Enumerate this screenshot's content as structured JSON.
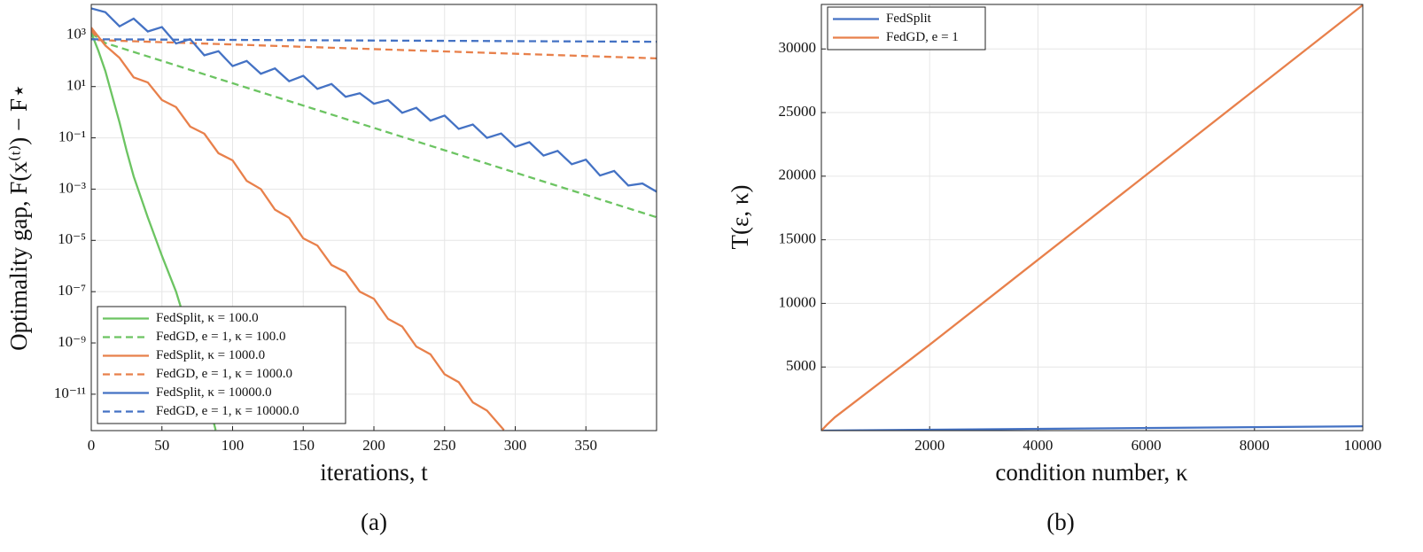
{
  "chart_data": [
    {
      "type": "line",
      "log_y": true,
      "grid": true,
      "legend": "lower left",
      "caption": "(a)",
      "xlabel": "iterations, t",
      "ylabel": "Optimality gap, F(x⁽ᵗ⁾) − F⋆",
      "xlim": [
        0,
        400
      ],
      "xticks": [
        0,
        50,
        100,
        150,
        200,
        250,
        300,
        350
      ],
      "ylim": [
        3.8e-13,
        16000
      ],
      "yticks": [
        {
          "value": 1000,
          "label": "10³"
        },
        {
          "value": 10,
          "label": "10¹"
        },
        {
          "value": 0.1,
          "label": "10⁻¹"
        },
        {
          "value": 0.001,
          "label": "10⁻³"
        },
        {
          "value": 1e-05,
          "label": "10⁻⁵"
        },
        {
          "value": 1e-07,
          "label": "10⁻⁷"
        },
        {
          "value": 1e-09,
          "label": "10⁻⁹"
        },
        {
          "value": 1e-11,
          "label": "10⁻¹¹"
        }
      ],
      "series": [
        {
          "name": "FedSplit, κ = 100.0",
          "color": "#6cc462",
          "linestyle": "solid",
          "x": [
            0,
            5,
            10,
            15,
            20,
            25,
            30,
            40,
            50,
            60,
            70,
            80,
            88
          ],
          "values": [
            1259,
            251,
            39.8,
            3.98,
            0.398,
            0.0316,
            0.00316,
            7.9e-05,
            2.5e-06,
            1e-07,
            1.6e-09,
            2.5e-11,
            4e-13
          ]
        },
        {
          "name": "FedGD, e = 1, κ = 100.0",
          "color": "#6cc462",
          "linestyle": "dashed",
          "x": [
            0,
            10,
            400
          ],
          "values": [
            1200,
            500,
            8e-05
          ]
        },
        {
          "name": "FedSplit, κ = 1000.0",
          "color": "#e8804b",
          "linestyle": "solid",
          "x": [
            0,
            10,
            20,
            30,
            40,
            50,
            60,
            70,
            80,
            90,
            100,
            110,
            120,
            130,
            140,
            150,
            160,
            170,
            180,
            190,
            200,
            210,
            220,
            230,
            240,
            250,
            260,
            270,
            280,
            292
          ],
          "values": [
            1995,
            398,
            132,
            22.9,
            14.5,
            3.0,
            1.58,
            0.275,
            0.145,
            0.0251,
            0.0132,
            0.00209,
            0.001,
            0.000158,
            7.6e-05,
            1.2e-05,
            6.3e-06,
            1.1e-06,
            5.75e-07,
            1e-07,
            5.25e-08,
            8.7e-09,
            4.37e-09,
            7.2e-10,
            3.6e-10,
            6e-11,
            2.95e-11,
            4.8e-12,
            2.3e-12,
            4e-13
          ]
        },
        {
          "name": "FedGD, e = 1, κ = 1000.0",
          "color": "#e8804b",
          "linestyle": "dashed",
          "x": [
            0,
            5,
            400
          ],
          "values": [
            1600,
            650,
            126
          ]
        },
        {
          "name": "FedSplit, κ = 10000.0",
          "color": "#4472c4",
          "linestyle": "solid",
          "x": [
            0,
            10,
            20,
            30,
            40,
            50,
            60,
            70,
            80,
            90,
            100,
            110,
            120,
            130,
            140,
            150,
            160,
            170,
            180,
            190,
            200,
            210,
            220,
            230,
            240,
            250,
            260,
            270,
            280,
            290,
            300,
            310,
            320,
            330,
            340,
            350,
            360,
            370,
            380,
            390,
            400
          ],
          "values": [
            11200,
            7940,
            2240,
            4470,
            1410,
            2090,
            479,
            708,
            166,
            240,
            63,
            100,
            31.6,
            51,
            16.2,
            26.3,
            8.1,
            12.6,
            3.98,
            5.5,
            2.14,
            3.0,
            0.95,
            1.48,
            0.47,
            0.74,
            0.224,
            0.331,
            0.1,
            0.148,
            0.0447,
            0.0676,
            0.0204,
            0.0309,
            0.00933,
            0.0141,
            0.00339,
            0.00513,
            0.00138,
            0.00166,
            0.000794
          ]
        },
        {
          "name": "FedGD, e = 1, κ = 10000.0",
          "color": "#4472c4",
          "linestyle": "dashed",
          "x": [
            0,
            400
          ],
          "values": [
            700,
            560
          ]
        }
      ]
    },
    {
      "type": "line",
      "log_y": false,
      "grid": true,
      "legend": "upper left",
      "caption": "(b)",
      "xlabel": "condition number, κ",
      "ylabel": "T(ε, κ)",
      "xlim": [
        0,
        10000
      ],
      "xticks": [
        2000,
        4000,
        6000,
        8000,
        10000
      ],
      "ylim": [
        0,
        33500
      ],
      "yticks": [
        5000,
        10000,
        15000,
        20000,
        25000,
        30000
      ],
      "series": [
        {
          "name": "FedSplit",
          "color": "#4472c4",
          "linestyle": "solid",
          "x": [
            0,
            10000
          ],
          "values": [
            0,
            340
          ]
        },
        {
          "name": "FedGD, e = 1",
          "color": "#e8804b",
          "linestyle": "solid",
          "x": [
            0,
            100,
            250,
            2000,
            10000
          ],
          "values": [
            0,
            450,
            1050,
            6750,
            33450
          ]
        }
      ]
    }
  ]
}
